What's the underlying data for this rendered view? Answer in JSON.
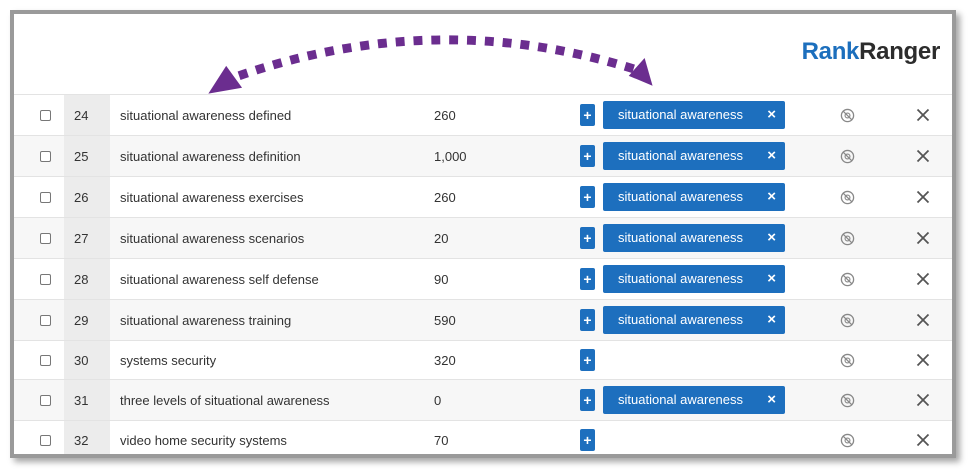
{
  "brand": {
    "rank": "Rank",
    "ranger": "Ranger"
  },
  "colors": {
    "accent": "#1d6fbe",
    "arrow": "#6b2d8f",
    "brand_rank": "#1c6fbd"
  },
  "icons": {
    "plus": "+",
    "tag_remove": "×",
    "row_delete": "close-icon",
    "row_hide": "hide-icon",
    "arrow": "curved-double-arrow"
  },
  "rows": [
    {
      "num": "24",
      "keyword": "situational awareness defined",
      "volume": "260",
      "tag": "situational awareness",
      "plus": "+",
      "tag_x": "×"
    },
    {
      "num": "25",
      "keyword": "situational awareness definition",
      "volume": "1,000",
      "tag": "situational awareness",
      "plus": "+",
      "tag_x": "×"
    },
    {
      "num": "26",
      "keyword": "situational awareness exercises",
      "volume": "260",
      "tag": "situational awareness",
      "plus": "+",
      "tag_x": "×"
    },
    {
      "num": "27",
      "keyword": "situational awareness scenarios",
      "volume": "20",
      "tag": "situational awareness",
      "plus": "+",
      "tag_x": "×"
    },
    {
      "num": "28",
      "keyword": "situational awareness self defense",
      "volume": "90",
      "tag": "situational awareness",
      "plus": "+",
      "tag_x": "×"
    },
    {
      "num": "29",
      "keyword": "situational awareness training",
      "volume": "590",
      "tag": "situational awareness",
      "plus": "+",
      "tag_x": "×"
    },
    {
      "num": "30",
      "keyword": "systems security",
      "volume": "320",
      "tag": "",
      "plus": "+",
      "tag_x": ""
    },
    {
      "num": "31",
      "keyword": "three levels of situational awareness",
      "volume": "0",
      "tag": "situational awareness",
      "plus": "+",
      "tag_x": "×"
    },
    {
      "num": "32",
      "keyword": "video home security systems",
      "volume": "70",
      "tag": "",
      "plus": "+",
      "tag_x": ""
    }
  ]
}
